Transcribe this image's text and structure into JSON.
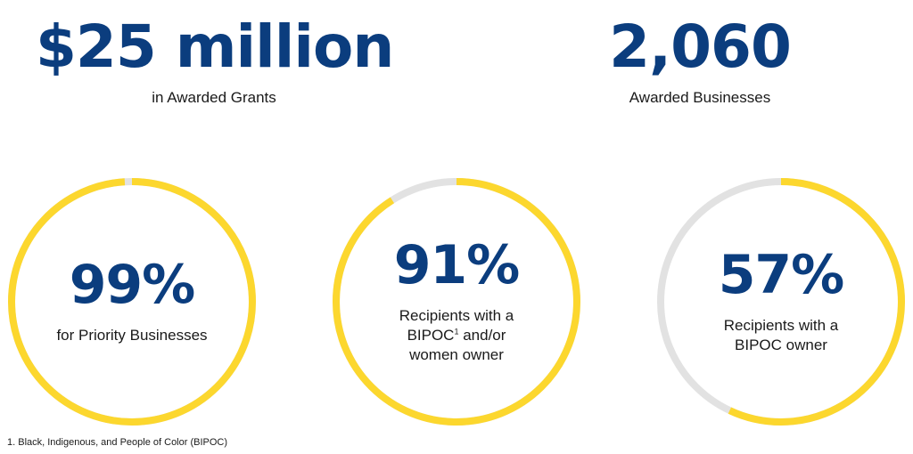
{
  "stats": [
    {
      "value": "$25 million",
      "label": "in Awarded Grants"
    },
    {
      "value": "2,060",
      "label": "Awarded Businesses"
    }
  ],
  "chart_data": {
    "type": "pie",
    "rings": [
      {
        "percent": 99,
        "display": "99%",
        "label": "for Priority Businesses"
      },
      {
        "percent": 91,
        "display": "91%",
        "label_before": "Recipients with a BIPOC",
        "superscript": "1",
        "label_after": " and/or women owner"
      },
      {
        "percent": 57,
        "display": "57%",
        "label": "Recipients with a BIPOC owner"
      }
    ],
    "colors": {
      "fill": "#fcd72e",
      "track": "#e2e2e2"
    }
  },
  "footnote": "1. Black, Indigenous, and People of Color (BIPOC)"
}
